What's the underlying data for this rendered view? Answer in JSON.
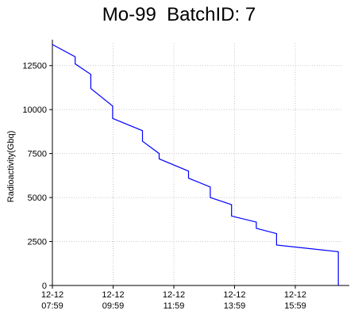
{
  "chart_data": {
    "type": "line",
    "title": "Mo-99  BatchID: 7",
    "xlabel": "",
    "ylabel": "Radioactivity(Gbq)",
    "grid": true,
    "line_color": "#0000ff",
    "y_ticks": [
      0,
      2500,
      5000,
      7500,
      10000,
      12500
    ],
    "ylim": [
      0,
      13750
    ],
    "xlim": [
      "12-12 07:59",
      "12-12 17:30"
    ],
    "x_ticks": [
      {
        "x": "12-12 07:59",
        "date": "12-12",
        "time": "07:59"
      },
      {
        "x": "12-12 09:59",
        "date": "12-12",
        "time": "09:59"
      },
      {
        "x": "12-12 11:59",
        "date": "12-12",
        "time": "11:59"
      },
      {
        "x": "12-12 13:59",
        "date": "12-12",
        "time": "13:59"
      },
      {
        "x": "12-12 15:59",
        "date": "12-12",
        "time": "15:59"
      }
    ],
    "series": [
      {
        "points": [
          [
            "12-12 07:59",
            13700
          ],
          [
            "12-12 08:44",
            13000
          ],
          [
            "12-12 08:44",
            12600
          ],
          [
            "12-12 09:15",
            12000
          ],
          [
            "12-12 09:15",
            11200
          ],
          [
            "12-12 09:58",
            10200
          ],
          [
            "12-12 09:58",
            9500
          ],
          [
            "12-12 10:57",
            8800
          ],
          [
            "12-12 10:57",
            8200
          ],
          [
            "12-12 11:30",
            7500
          ],
          [
            "12-12 11:30",
            7200
          ],
          [
            "12-12 12:28",
            6500
          ],
          [
            "12-12 12:28",
            6100
          ],
          [
            "12-12 13:11",
            5600
          ],
          [
            "12-12 13:11",
            5000
          ],
          [
            "12-12 13:53",
            4600
          ],
          [
            "12-12 13:53",
            3950
          ],
          [
            "12-12 14:42",
            3600
          ],
          [
            "12-12 14:42",
            3250
          ],
          [
            "12-12 15:22",
            2950
          ],
          [
            "12-12 15:22",
            2300
          ],
          [
            "12-12 17:24",
            1920
          ],
          [
            "12-12 17:24",
            0
          ]
        ]
      }
    ]
  }
}
